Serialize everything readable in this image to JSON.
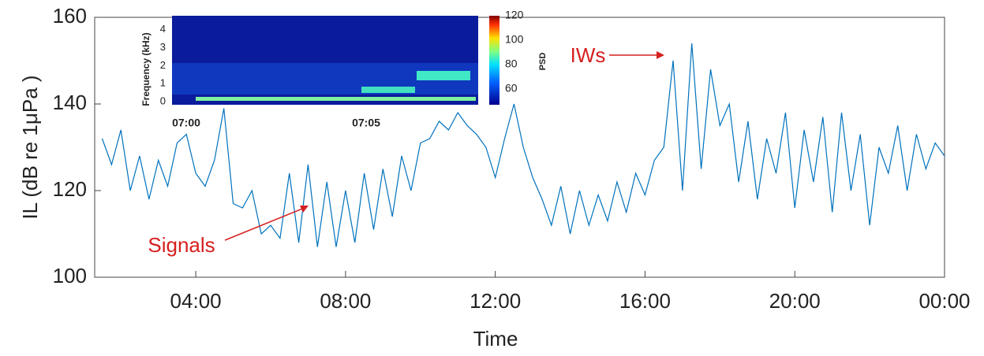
{
  "chart_data": {
    "type": "line",
    "xlabel": "Time",
    "ylabel": "IL  (dB re 1μPa )",
    "x": [
      1.5,
      1.75,
      2,
      2.25,
      2.5,
      2.75,
      3,
      3.25,
      3.5,
      3.75,
      4,
      4.25,
      4.5,
      4.75,
      5,
      5.25,
      5.5,
      5.75,
      6,
      6.25,
      6.5,
      6.75,
      7,
      7.25,
      7.5,
      7.75,
      8,
      8.25,
      8.5,
      8.75,
      9,
      9.25,
      9.5,
      9.75,
      10,
      10.25,
      10.5,
      10.75,
      11,
      11.25,
      11.5,
      11.75,
      12,
      12.25,
      12.5,
      12.75,
      13,
      13.25,
      13.5,
      13.75,
      14,
      14.25,
      14.5,
      14.75,
      15,
      15.25,
      15.5,
      15.75,
      16,
      16.25,
      16.5,
      16.75,
      17,
      17.25,
      17.5,
      17.75,
      18,
      18.25,
      18.5,
      18.75,
      19,
      19.25,
      19.5,
      19.75,
      20,
      20.25,
      20.5,
      20.75,
      21,
      21.25,
      21.5,
      21.75,
      22,
      22.25,
      22.5,
      22.75,
      23,
      23.25,
      23.5,
      23.75,
      24
    ],
    "series": [
      {
        "color": "#0072bd",
        "values": [
          132,
          126,
          134,
          120,
          128,
          118,
          127,
          121,
          131,
          133,
          124,
          121,
          127,
          139,
          117,
          116,
          120,
          110,
          112,
          109,
          124,
          108,
          126,
          107,
          122,
          107,
          120,
          108,
          124,
          111,
          125,
          114,
          128,
          120,
          131,
          132,
          136,
          134,
          138,
          135,
          133,
          130,
          123,
          132,
          140,
          130,
          123,
          118,
          112,
          121,
          110,
          120,
          112,
          119,
          113,
          122,
          115,
          124,
          119,
          127,
          130,
          150,
          120,
          154,
          125,
          148,
          135,
          140,
          122,
          136,
          118,
          132,
          124,
          138,
          116,
          134,
          122,
          137,
          115,
          138,
          120,
          133,
          112,
          130,
          124,
          135,
          120,
          133,
          125,
          131,
          128
        ]
      }
    ],
    "xlim": [
      1.3,
      24
    ],
    "ylim": [
      100,
      160
    ],
    "xticks": [
      {
        "value": 4,
        "label": "04:00"
      },
      {
        "value": 8,
        "label": "08:00"
      },
      {
        "value": 12,
        "label": "12:00"
      },
      {
        "value": 16,
        "label": "16:00"
      },
      {
        "value": 20,
        "label": "20:00"
      },
      {
        "value": 24,
        "label": "00:00"
      }
    ],
    "yticks": [
      100,
      120,
      140,
      160
    ],
    "annotations": [
      "IWs",
      "Signals"
    ],
    "inset": {
      "ylabel": "Frequency (kHz)",
      "yticks": [
        0,
        1,
        2,
        3,
        4
      ],
      "xticks": [
        "07:00",
        "07:05"
      ],
      "colorbar_label": "PSD",
      "colorbar_ticks": [
        60,
        80,
        100,
        120
      ]
    }
  }
}
